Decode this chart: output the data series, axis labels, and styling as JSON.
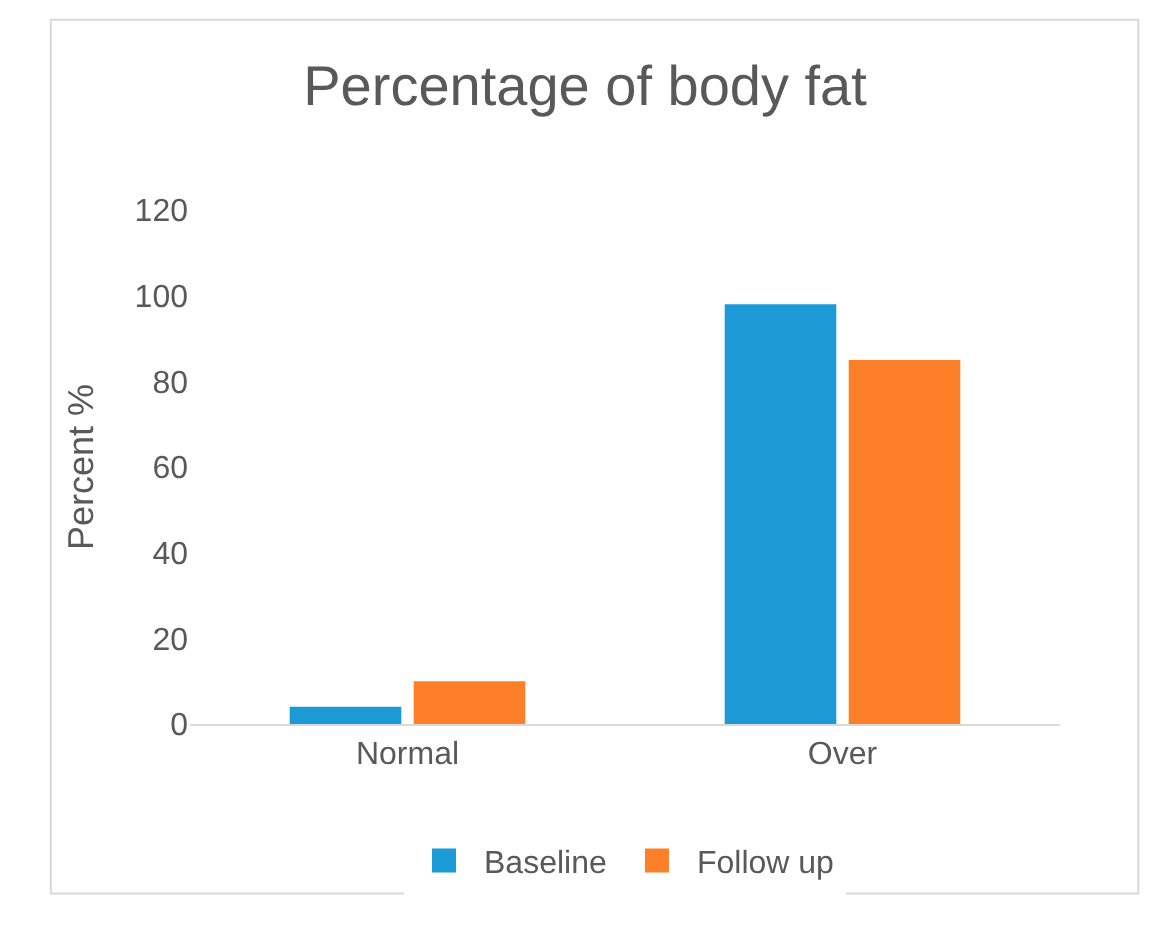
{
  "chart_data": {
    "type": "bar",
    "title": "Percentage of body fat",
    "ylabel": "Percent %",
    "categories": [
      "Normal",
      "Over"
    ],
    "series": [
      {
        "name": "Baseline",
        "color": "#1b9ad6",
        "values": [
          4,
          98
        ]
      },
      {
        "name": "Follow up",
        "color": "#fd7f28",
        "values": [
          10,
          85
        ]
      }
    ],
    "ylim": [
      0,
      120
    ],
    "yticks": [
      0,
      20,
      40,
      60,
      80,
      100,
      120
    ],
    "grid": false,
    "legend": "bottom"
  }
}
